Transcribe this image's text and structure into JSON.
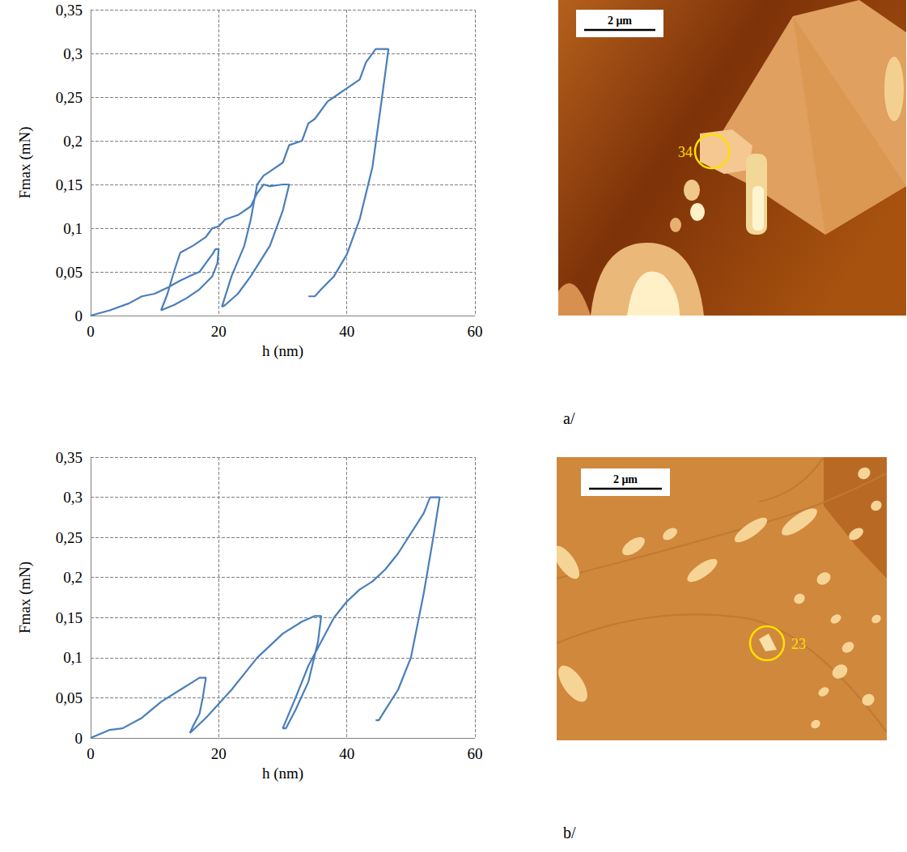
{
  "chart_data": [
    {
      "type": "line",
      "x_label": "h (nm)",
      "y_label": "Fmax (mN)",
      "color": "#4a7ebb",
      "line_style": "solid",
      "grid": true,
      "xlim": [
        0,
        60
      ],
      "xticks": [
        0,
        20,
        40,
        60
      ],
      "ylim": [
        0,
        0.35
      ],
      "yticks": [
        0,
        {
          "value": 0.05,
          "label": "0,05"
        },
        {
          "value": 0.1,
          "label": "0,1"
        },
        {
          "value": 0.15,
          "label": "0,15"
        },
        {
          "value": 0.2,
          "label": "0,2"
        },
        {
          "value": 0.25,
          "label": "0,25"
        },
        {
          "value": 0.3,
          "label": "0,3"
        },
        {
          "value": 0.35,
          "label": "0,35"
        }
      ],
      "x": [
        0,
        3,
        6,
        8,
        10,
        12,
        14,
        16,
        17,
        18,
        19,
        19.5,
        20,
        19.8,
        19,
        17,
        15,
        13,
        11,
        12,
        13,
        14,
        16,
        18,
        19,
        20,
        21,
        23,
        25,
        26,
        27,
        28,
        30,
        31,
        30,
        28,
        25,
        23,
        21,
        20.5,
        22,
        24,
        25,
        26,
        27,
        28,
        30,
        31,
        33,
        34,
        35,
        37,
        38,
        40,
        42,
        43,
        44.5,
        46.5,
        45.5,
        44,
        42,
        40,
        38,
        36,
        35,
        34
      ],
      "values": [
        0,
        0.006,
        0.014,
        0.022,
        0.025,
        0.032,
        0.04,
        0.047,
        0.05,
        0.06,
        0.07,
        0.076,
        0.076,
        0.06,
        0.045,
        0.03,
        0.02,
        0.012,
        0.006,
        0.025,
        0.05,
        0.072,
        0.08,
        0.09,
        0.1,
        0.102,
        0.11,
        0.115,
        0.125,
        0.14,
        0.15,
        0.148,
        0.15,
        0.15,
        0.12,
        0.08,
        0.045,
        0.025,
        0.012,
        0.01,
        0.045,
        0.08,
        0.11,
        0.15,
        0.16,
        0.165,
        0.175,
        0.195,
        0.2,
        0.22,
        0.225,
        0.245,
        0.25,
        0.26,
        0.27,
        0.29,
        0.305,
        0.305,
        0.25,
        0.17,
        0.11,
        0.07,
        0.045,
        0.03,
        0.022,
        0.022
      ]
    },
    {
      "type": "line",
      "x_label": "h (nm)",
      "y_label": "Fmax (mN)",
      "color": "#4a7ebb",
      "line_style": "solid",
      "grid": true,
      "xlim": [
        0,
        60
      ],
      "xticks": [
        0,
        20,
        40,
        60
      ],
      "ylim": [
        0,
        0.35
      ],
      "yticks": [
        0,
        {
          "value": 0.05,
          "label": "0,05"
        },
        {
          "value": 0.1,
          "label": "0,1"
        },
        {
          "value": 0.15,
          "label": "0,15"
        },
        {
          "value": 0.2,
          "label": "0,2"
        },
        {
          "value": 0.25,
          "label": "0,25"
        },
        {
          "value": 0.3,
          "label": "0,3"
        },
        {
          "value": 0.35,
          "label": "0,35"
        }
      ],
      "x": [
        0,
        3,
        5,
        8,
        11,
        14,
        16,
        17,
        18,
        17.5,
        17,
        16,
        15.5,
        18,
        22,
        26,
        30,
        33,
        35,
        36,
        35.5,
        34,
        32,
        30.5,
        30,
        32,
        34,
        36,
        38,
        40,
        42,
        44,
        46,
        48,
        50,
        52,
        53,
        54.5,
        53.5,
        52,
        50,
        48,
        46,
        45,
        44.5
      ],
      "values": [
        0,
        0.01,
        0.012,
        0.025,
        0.045,
        0.06,
        0.07,
        0.075,
        0.075,
        0.05,
        0.03,
        0.015,
        0.006,
        0.025,
        0.06,
        0.1,
        0.13,
        0.145,
        0.152,
        0.152,
        0.12,
        0.07,
        0.035,
        0.012,
        0.012,
        0.05,
        0.09,
        0.12,
        0.15,
        0.17,
        0.185,
        0.195,
        0.21,
        0.23,
        0.255,
        0.28,
        0.3,
        0.3,
        0.25,
        0.18,
        0.1,
        0.06,
        0.035,
        0.022,
        0.022
      ]
    }
  ],
  "panels": [
    {
      "label": "a/",
      "scale_bar": "2 μm",
      "marker": "34"
    },
    {
      "label": "b/",
      "scale_bar": "2 μm",
      "marker": "23"
    }
  ]
}
